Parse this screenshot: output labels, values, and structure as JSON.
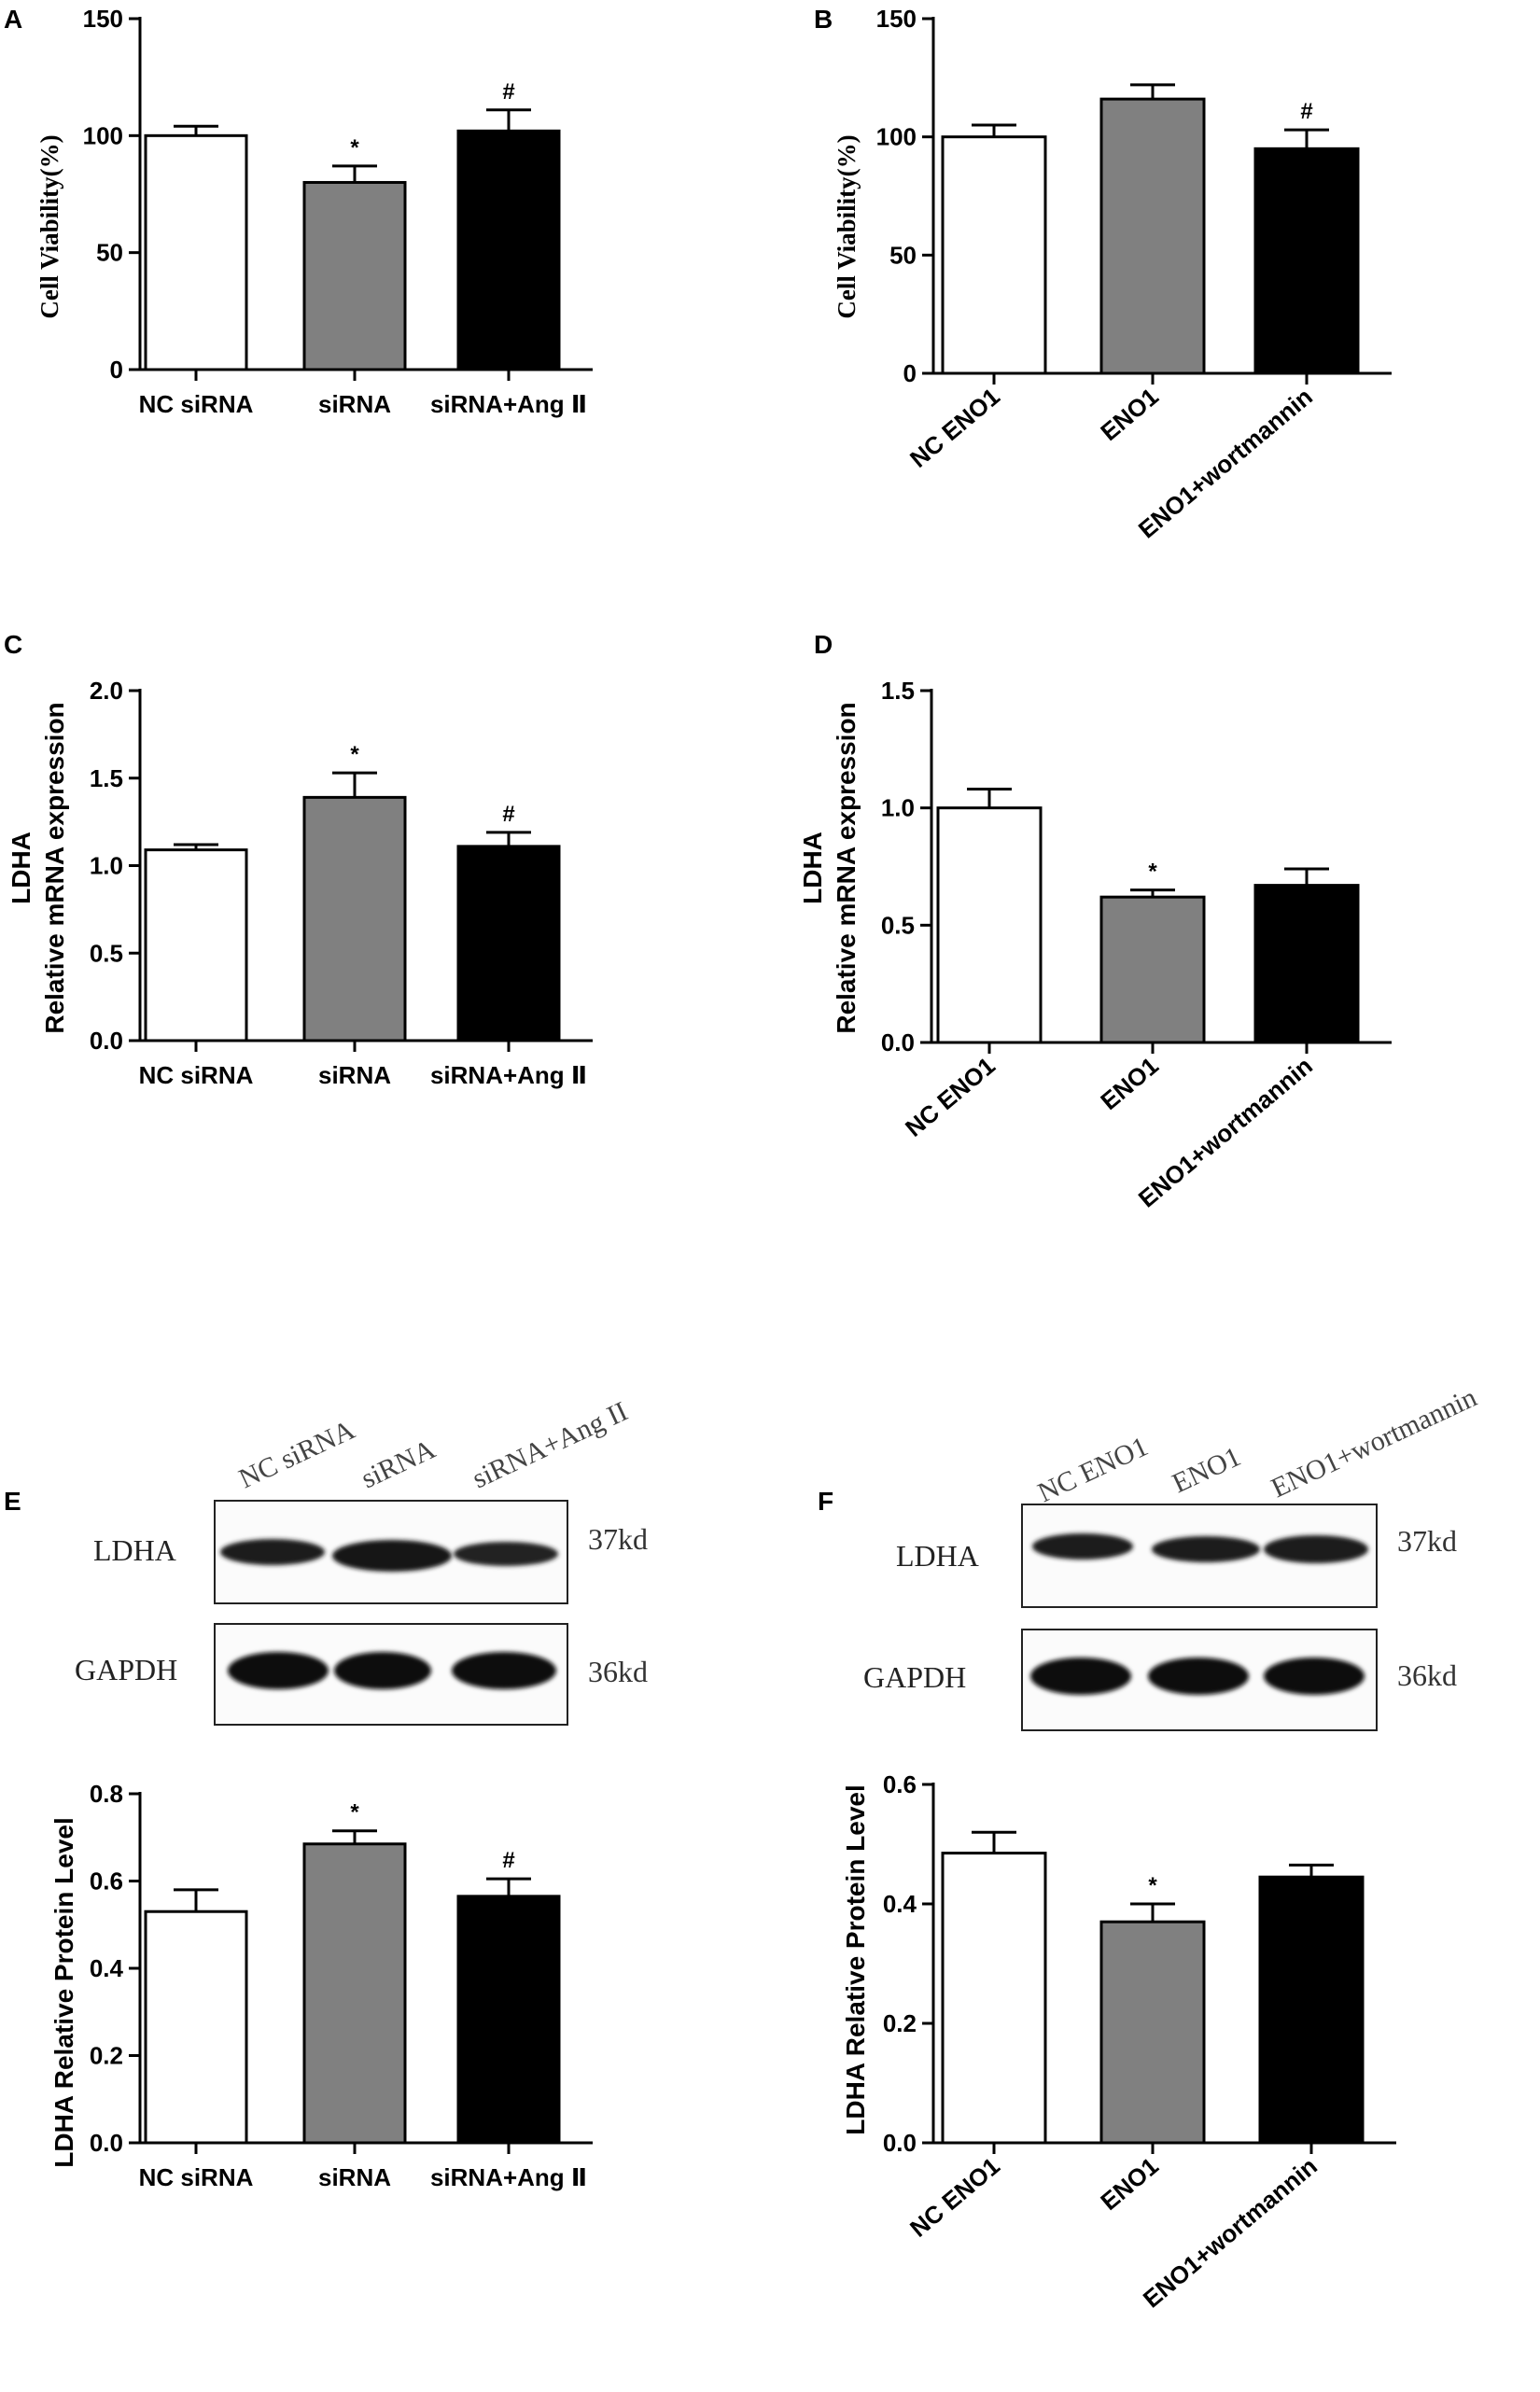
{
  "colors": {
    "white_bar": "#ffffff",
    "gray_bar": "#808080",
    "black_bar": "#000000",
    "axis": "#000000"
  },
  "chart_data": [
    {
      "panel": "A",
      "type": "bar",
      "ylabel": "Cell Viability(%)",
      "categories": [
        "NC siRNA",
        "siRNA",
        "siRNA+Ang Ⅱ"
      ],
      "values": [
        100,
        80,
        102
      ],
      "errors": [
        4,
        7,
        9
      ],
      "marks": [
        "",
        "*",
        "#"
      ],
      "ylim": [
        0,
        150
      ],
      "yticks": [
        0,
        50,
        100,
        150
      ],
      "ytick_labels": [
        "0",
        "50",
        "100",
        "150"
      ],
      "bar_colors": [
        "white",
        "gray",
        "black"
      ],
      "rotate_labels": false
    },
    {
      "panel": "B",
      "type": "bar",
      "ylabel": "Cell Viability(%)",
      "categories": [
        "NC ENO1",
        "ENO1",
        "ENO1+wortmannin"
      ],
      "values": [
        100,
        116,
        95
      ],
      "errors": [
        5,
        6,
        8
      ],
      "marks": [
        "",
        "",
        "#"
      ],
      "ylim": [
        0,
        150
      ],
      "yticks": [
        0,
        50,
        100,
        150
      ],
      "ytick_labels": [
        "0",
        "50",
        "100",
        "150"
      ],
      "bar_colors": [
        "white",
        "gray",
        "black"
      ],
      "rotate_labels": true
    },
    {
      "panel": "C",
      "type": "bar",
      "ylabel_lines": [
        "LDHA",
        "Relative mRNA expression"
      ],
      "categories": [
        "NC siRNA",
        "siRNA",
        "siRNA+Ang Ⅱ"
      ],
      "values": [
        1.09,
        1.39,
        1.11
      ],
      "errors": [
        0.03,
        0.14,
        0.08
      ],
      "marks": [
        "",
        "*",
        "#"
      ],
      "ylim": [
        0,
        2.0
      ],
      "yticks": [
        0,
        0.5,
        1.0,
        1.5,
        2.0
      ],
      "ytick_labels": [
        "0.0",
        "0.5",
        "1.0",
        "1.5",
        "2.0"
      ],
      "bar_colors": [
        "white",
        "gray",
        "black"
      ],
      "rotate_labels": false
    },
    {
      "panel": "D",
      "type": "bar",
      "ylabel_lines": [
        "LDHA",
        "Relative mRNA expression"
      ],
      "categories": [
        "NC ENO1",
        "ENO1",
        "ENO1+wortmannin"
      ],
      "values": [
        1.0,
        0.62,
        0.67
      ],
      "errors": [
        0.08,
        0.03,
        0.07
      ],
      "marks": [
        "",
        "*",
        ""
      ],
      "ylim": [
        0,
        1.5
      ],
      "yticks": [
        0,
        0.5,
        1.0,
        1.5
      ],
      "ytick_labels": [
        "0.0",
        "0.5",
        "1.0",
        "1.5"
      ],
      "bar_colors": [
        "white",
        "gray",
        "black"
      ],
      "rotate_labels": true
    },
    {
      "panel": "E",
      "type": "bar",
      "ylabel": "LDHA Relative Protein Level",
      "categories": [
        "NC siRNA",
        "siRNA",
        "siRNA+Ang Ⅱ"
      ],
      "values": [
        0.53,
        0.685,
        0.565
      ],
      "errors": [
        0.05,
        0.03,
        0.04
      ],
      "marks": [
        "",
        "*",
        "#"
      ],
      "ylim": [
        0,
        0.8
      ],
      "yticks": [
        0,
        0.2,
        0.4,
        0.6,
        0.8
      ],
      "ytick_labels": [
        "0.0",
        "0.2",
        "0.4",
        "0.6",
        "0.8"
      ],
      "bar_colors": [
        "white",
        "gray",
        "black"
      ],
      "rotate_labels": false
    },
    {
      "panel": "F",
      "type": "bar",
      "ylabel": "LDHA Relative Protein Level",
      "categories": [
        "NC ENO1",
        "ENO1",
        "ENO1+wortmannin"
      ],
      "values": [
        0.485,
        0.37,
        0.445
      ],
      "errors": [
        0.035,
        0.03,
        0.02
      ],
      "marks": [
        "",
        "*",
        ""
      ],
      "ylim": [
        0,
        0.6
      ],
      "yticks": [
        0,
        0.2,
        0.4,
        0.6
      ],
      "ytick_labels": [
        "0.0",
        "0.2",
        "0.4",
        "0.6"
      ],
      "bar_colors": [
        "white",
        "gray",
        "black"
      ],
      "rotate_labels": true
    }
  ],
  "blots": [
    {
      "panel": "E",
      "lanes": [
        "NC siRNA",
        "siRNA",
        "siRNA+Ang II"
      ],
      "rows": [
        {
          "protein": "LDHA",
          "size": "37kd"
        },
        {
          "protein": "GAPDH",
          "size": "36kd"
        }
      ]
    },
    {
      "panel": "F",
      "lanes": [
        "NC ENO1",
        "ENO1",
        "ENO1+wortmannin"
      ],
      "rows": [
        {
          "protein": "LDHA",
          "size": "37kd"
        },
        {
          "protein": "GAPDH",
          "size": "36kd"
        }
      ]
    }
  ]
}
